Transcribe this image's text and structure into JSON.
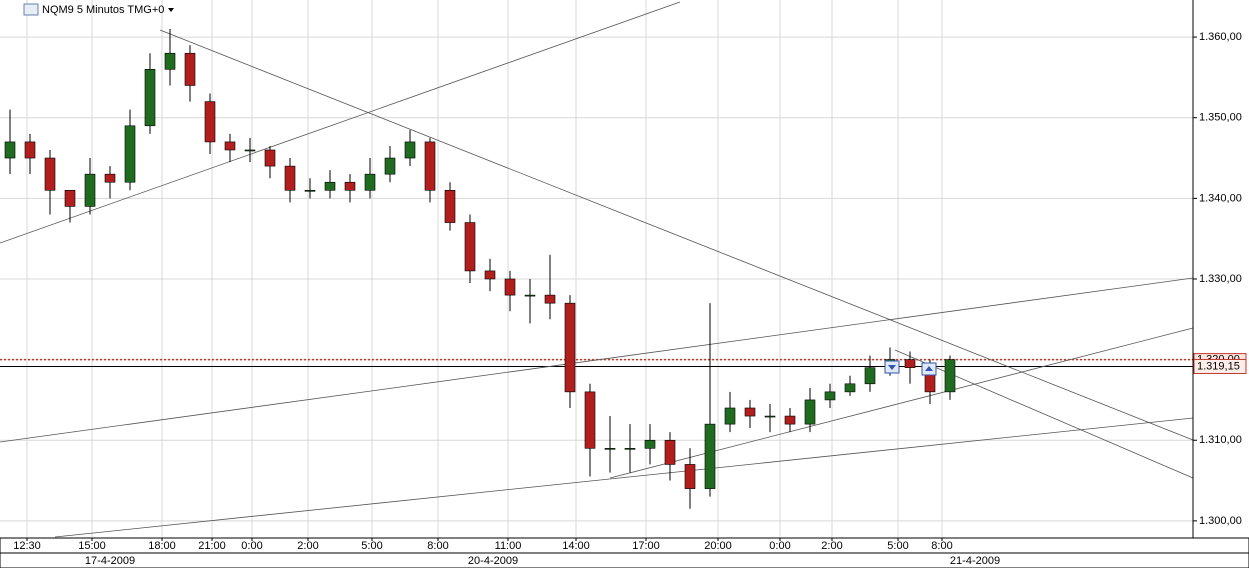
{
  "chart_data": {
    "type": "candlestick",
    "title": "NQM9 5 Minutos TMG+0",
    "x": [
      0.5,
      1.5,
      2.5,
      3.5,
      4.5,
      5.5,
      6.5,
      7.5,
      8.5,
      9.5,
      10.5,
      11.5,
      12.5,
      13.5,
      14.5,
      15.5,
      16.5,
      17.5,
      18.5,
      19.5,
      20.5,
      21.5,
      22.5,
      23.5,
      24.5,
      25.5,
      26.5,
      27.5,
      28.5,
      29.5,
      30.5,
      31.5,
      32.5,
      33.5,
      34.5,
      35.5,
      36.5,
      37.5,
      38.5,
      39.5,
      40.5,
      41.5,
      42.5,
      43.5,
      44.5,
      45.5,
      46.5,
      47.5
    ],
    "open": [
      1345,
      1347,
      1345,
      1341,
      1339,
      1343,
      1342,
      1349,
      1356,
      1358,
      1352,
      1347,
      1346,
      1346,
      1344,
      1341,
      1341,
      1342,
      1341,
      1343,
      1345,
      1347,
      1341,
      1337,
      1331,
      1330,
      1328,
      1328,
      1327,
      1316,
      1309,
      1309,
      1309,
      1310,
      1307,
      1304,
      1312,
      1314,
      1313,
      1313,
      1312,
      1315,
      1316,
      1317,
      1319,
      1320,
      1319,
      1316
    ],
    "high": [
      1351,
      1348,
      1346,
      1341,
      1345,
      1344,
      1351,
      1358,
      1361,
      1359,
      1353,
      1348,
      1347.5,
      1346.5,
      1345,
      1342.5,
      1343.5,
      1343,
      1345,
      1346.5,
      1348.5,
      1347.5,
      1342,
      1338,
      1332.5,
      1331,
      1330,
      1333,
      1328,
      1317,
      1313,
      1312,
      1312,
      1311,
      1309,
      1327,
      1316,
      1315,
      1314.5,
      1314,
      1316.5,
      1317,
      1318,
      1320.5,
      1321.5,
      1321,
      1320,
      1320.5
    ],
    "low": [
      1343,
      1343,
      1338,
      1337,
      1338,
      1340,
      1341,
      1348,
      1354,
      1352,
      1345.5,
      1344.5,
      1344.5,
      1342.5,
      1339.5,
      1340,
      1340,
      1339.5,
      1340,
      1342,
      1344,
      1339.5,
      1336,
      1329.5,
      1328.5,
      1326,
      1324.5,
      1325,
      1314,
      1305.5,
      1306,
      1306,
      1307,
      1305,
      1301.5,
      1303,
      1311,
      1311.5,
      1311,
      1311,
      1311,
      1314,
      1315.5,
      1316,
      1318,
      1317,
      1314.5,
      1315
    ],
    "close": [
      1347,
      1345,
      1341,
      1339,
      1343,
      1342,
      1349,
      1356,
      1358,
      1354,
      1347,
      1346,
      1346,
      1344,
      1341,
      1341,
      1342,
      1341,
      1343,
      1345,
      1347,
      1341,
      1337,
      1331,
      1330,
      1328,
      1328,
      1327,
      1316,
      1309,
      1309,
      1309,
      1310,
      1307,
      1304,
      1312,
      1314,
      1313,
      1313,
      1312,
      1315,
      1316,
      1317,
      1319,
      1320,
      1319,
      1316,
      1320
    ],
    "up_color": "#1f6b1f",
    "down_color": "#b01e1e",
    "xlim": [
      0,
      59.65
    ],
    "ylim": [
      1298,
      1364.6
    ],
    "yticks": [
      {
        "value": 1300,
        "label": "1.300,00"
      },
      {
        "value": 1310,
        "label": "1.310,00"
      },
      {
        "value": 1320,
        "label": "1.320,00"
      },
      {
        "value": 1330,
        "label": "1.330,00"
      },
      {
        "value": 1340,
        "label": "1.340,00"
      },
      {
        "value": 1350,
        "label": "1.350,00"
      },
      {
        "value": 1360,
        "label": "1.360,00"
      }
    ],
    "xticks": [
      {
        "value": 1.35,
        "label": "12:30"
      },
      {
        "value": 4.6,
        "label": "15:00"
      },
      {
        "value": 8.1,
        "label": "18:00"
      },
      {
        "value": 10.6,
        "label": "21:00"
      },
      {
        "value": 12.6,
        "label": "0:00"
      },
      {
        "value": 15.4,
        "label": "2:00"
      },
      {
        "value": 18.6,
        "label": "5:00"
      },
      {
        "value": 21.9,
        "label": "8:00"
      },
      {
        "value": 25.4,
        "label": "11:00"
      },
      {
        "value": 28.8,
        "label": "14:00"
      },
      {
        "value": 32.3,
        "label": "17:00"
      },
      {
        "value": 35.9,
        "label": "20:00"
      },
      {
        "value": 39,
        "label": "0:00"
      },
      {
        "value": 41.6,
        "label": "2:00"
      },
      {
        "value": 44.9,
        "label": "5:00"
      },
      {
        "value": 47.1,
        "label": "8:00"
      }
    ],
    "date_labels": [
      {
        "value": 5.5,
        "label": "17-4-2009"
      },
      {
        "value": 24.65,
        "label": "20-4-2009"
      },
      {
        "value": 48.75,
        "label": "21-4-2009"
      }
    ],
    "alert_line": {
      "value": 1320,
      "label": "1.320,00",
      "color": "#c0392b"
    },
    "price_line": {
      "value": 1319.15,
      "label": "1.319,15",
      "color": "#000000"
    },
    "grid": true
  }
}
